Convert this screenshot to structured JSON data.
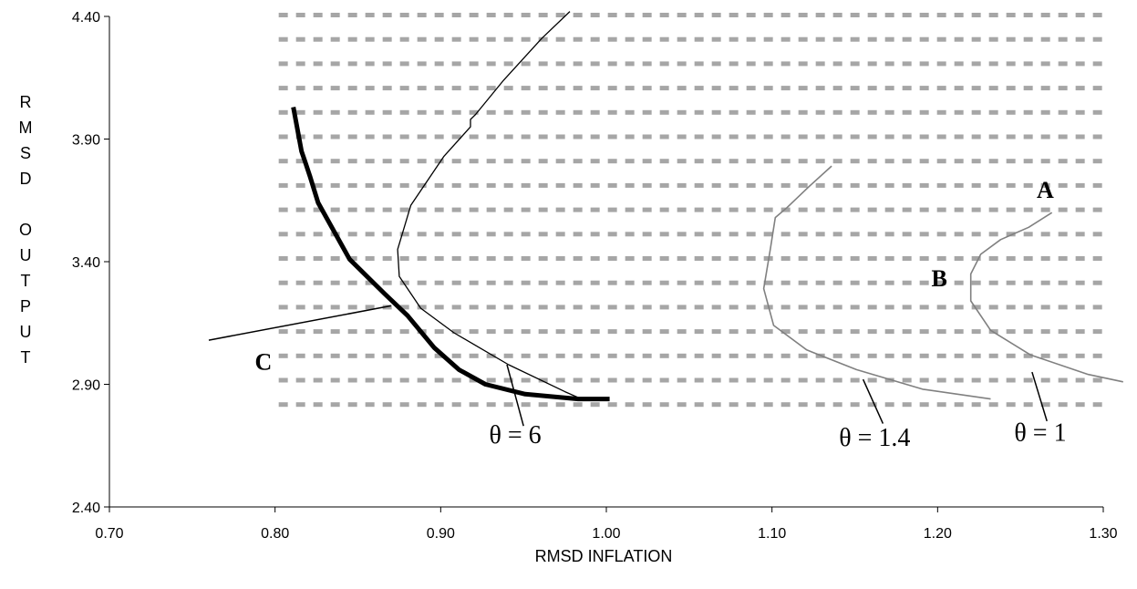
{
  "chart_data": {
    "type": "line",
    "xlabel": "RMSD INFLATION",
    "ylabel": "RMSD OUTPUT",
    "xlim": [
      0.7,
      1.3
    ],
    "ylim": [
      2.4,
      4.4
    ],
    "xticks": [
      "0.70",
      "0.80",
      "0.90",
      "1.00",
      "1.10",
      "1.20",
      "1.30"
    ],
    "yticks": [
      "2.40",
      "2.90",
      "3.40",
      "3.90",
      "4.40"
    ],
    "shaded_region": {
      "x": [
        0.8,
        1.3
      ],
      "y": [
        2.8,
        4.4
      ],
      "pattern": "dashed-gray"
    },
    "series": [
      {
        "name": "C",
        "style": "thick-black",
        "x": [
          0.811,
          0.816,
          0.818,
          0.821,
          0.826,
          0.845,
          0.866,
          0.88,
          0.896,
          0.911,
          0.927,
          0.951,
          0.983,
          1.002
        ],
        "y": [
          4.03,
          3.85,
          3.81,
          3.75,
          3.64,
          3.41,
          3.27,
          3.18,
          3.05,
          2.96,
          2.9,
          2.86,
          2.84,
          2.84
        ]
      },
      {
        "name": "θ = 6",
        "style": "thin-black",
        "x": [
          0.978,
          0.961,
          0.938,
          0.921,
          0.918,
          0.918,
          0.902,
          0.882,
          0.874,
          0.875,
          0.888,
          0.908,
          0.941,
          0.975,
          0.985
        ],
        "y": [
          4.42,
          4.31,
          4.14,
          4.0,
          3.98,
          3.95,
          3.83,
          3.63,
          3.45,
          3.34,
          3.21,
          3.11,
          2.98,
          2.87,
          2.84
        ]
      },
      {
        "name": "θ = 1.4",
        "style": "gray",
        "x": [
          1.136,
          1.123,
          1.109,
          1.102,
          1.099,
          1.095,
          1.101,
          1.121,
          1.151,
          1.191,
          1.232
        ],
        "y": [
          3.79,
          3.71,
          3.62,
          3.58,
          3.45,
          3.29,
          3.14,
          3.04,
          2.96,
          2.88,
          2.84
        ]
      },
      {
        "name": "θ = 1",
        "style": "gray",
        "x": [
          1.269,
          1.255,
          1.238,
          1.226,
          1.22,
          1.22,
          1.232,
          1.256,
          1.291,
          1.312
        ],
        "y": [
          3.6,
          3.54,
          3.49,
          3.43,
          3.35,
          3.24,
          3.12,
          3.02,
          2.94,
          2.91
        ]
      }
    ],
    "annotations": [
      {
        "text": "A",
        "x": 1.265,
        "y": 3.66
      },
      {
        "text": "B",
        "x": 1.201,
        "y": 3.3
      },
      {
        "text": "C",
        "x": 0.793,
        "y": 2.96
      },
      {
        "text": "θ = 6",
        "x": 0.945,
        "y": 2.66
      },
      {
        "text": "θ = 1.4",
        "x": 1.162,
        "y": 2.65
      },
      {
        "text": "θ = 1",
        "x": 1.262,
        "y": 2.67
      }
    ],
    "leaders": [
      {
        "from": [
          0.76,
          3.08
        ],
        "to": [
          0.87,
          3.22
        ]
      },
      {
        "from": [
          0.94,
          2.98
        ],
        "to": [
          0.95,
          2.73
        ]
      },
      {
        "from": [
          1.155,
          2.92
        ],
        "to": [
          1.167,
          2.74
        ]
      },
      {
        "from": [
          1.257,
          2.95
        ],
        "to": [
          1.266,
          2.75
        ]
      }
    ]
  }
}
